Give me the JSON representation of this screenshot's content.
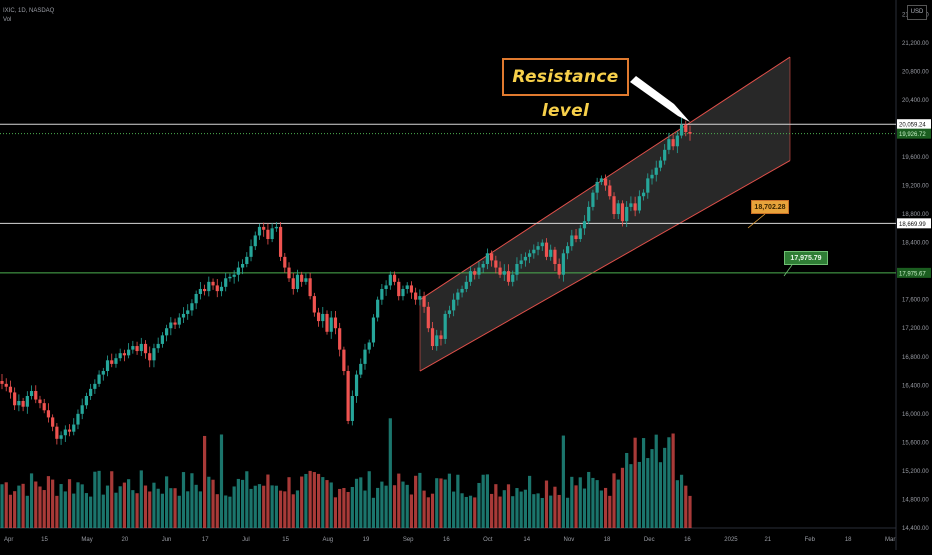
{
  "header": {
    "symbol_line": "IXIC, 1D, NASDAQ",
    "volume_label": "Vol",
    "currency": "USD"
  },
  "annotations": {
    "callout_text": "Resistance level",
    "tag_upper": "18,702.28",
    "tag_lower": "17,975.79"
  },
  "colors": {
    "background": "#000000",
    "up_candle": "#26a69a",
    "down_candle": "#ef5350",
    "channel_line": "#e0504a",
    "green_line": "#4caf50",
    "callout_border": "#e07a2f",
    "callout_text": "#f7d04a"
  },
  "chart_data": {
    "type": "candlestick",
    "y_axis": {
      "ticks": [
        "21,600.00",
        "21,200.00",
        "20,800.00",
        "20,400.00",
        "19,600.00",
        "19,200.00",
        "18,800.00",
        "18,400.00",
        "17,600.00",
        "17,200.00",
        "16,800.00",
        "16,400.00",
        "16,000.00",
        "15,600.00",
        "15,200.00",
        "14,800.00",
        "14,400.00"
      ],
      "range": [
        14400,
        21800
      ],
      "price_labels": [
        {
          "text": "20,059.24",
          "value": 20059.24,
          "style": "white"
        },
        {
          "text": "19,926.72",
          "value": 19926.72,
          "style": "green"
        },
        {
          "text": "18,669.99",
          "value": 18669.99,
          "style": "white"
        },
        {
          "text": "17,975.67",
          "value": 17975.67,
          "style": "green"
        }
      ]
    },
    "x_axis": {
      "ticks": [
        "Apr",
        "15",
        "May",
        "20",
        "Jun",
        "17",
        "Jul",
        "15",
        "Aug",
        "19",
        "Sep",
        "16",
        "Oct",
        "14",
        "Nov",
        "18",
        "Dec",
        "16",
        "2025",
        "21",
        "Feb",
        "18",
        "Mar"
      ]
    },
    "horizontal_levels": [
      {
        "value": 20059.24,
        "style": "white-solid"
      },
      {
        "value": 19926.72,
        "style": "green-dotted"
      },
      {
        "value": 18669.99,
        "style": "white-solid"
      },
      {
        "value": 17975.67,
        "style": "green-solid"
      }
    ],
    "series_closes": [
      16420,
      16380,
      16300,
      16120,
      16180,
      16100,
      16250,
      16320,
      16200,
      16150,
      16050,
      15950,
      15820,
      15650,
      15700,
      15780,
      15750,
      15850,
      16000,
      16120,
      16250,
      16350,
      16420,
      16550,
      16600,
      16750,
      16700,
      16780,
      16850,
      16820,
      16900,
      16950,
      16880,
      16980,
      16850,
      16750,
      16920,
      16980,
      17100,
      17200,
      17280,
      17250,
      17350,
      17400,
      17450,
      17550,
      17680,
      17750,
      17720,
      17850,
      17800,
      17720,
      17780,
      17900,
      17920,
      17950,
      18050,
      18100,
      18200,
      18350,
      18500,
      18620,
      18580,
      18450,
      18600,
      18620,
      18200,
      18050,
      17900,
      17750,
      17950,
      17850,
      17900,
      17650,
      17420,
      17300,
      17400,
      17150,
      17350,
      17200,
      16900,
      16600,
      15900,
      16250,
      16550,
      16700,
      16900,
      17000,
      17350,
      17600,
      17750,
      17800,
      17950,
      17850,
      17650,
      17750,
      17800,
      17700,
      17600,
      17650,
      17500,
      17200,
      16950,
      17100,
      17050,
      17400,
      17450,
      17600,
      17700,
      17750,
      17850,
      18000,
      17950,
      18050,
      18100,
      18250,
      18150,
      18050,
      17950,
      18000,
      17850,
      17950,
      18100,
      18150,
      18200,
      18250,
      18300,
      18350,
      18400,
      18200,
      18300,
      18100,
      17950,
      18250,
      18350,
      18500,
      18450,
      18600,
      18700,
      18900,
      19100,
      19250,
      19300,
      19200,
      19050,
      18800,
      18950,
      18700,
      18900,
      18950,
      18850,
      19050,
      19100,
      19300,
      19350,
      19450,
      19550,
      19700,
      19850,
      19750,
      19900,
      20050,
      19950,
      19926.72
    ],
    "channel": {
      "upper": [
        {
          "x_label": "Sep",
          "y": 17600
        },
        {
          "x_label": "Jan 21",
          "y": 21000
        }
      ],
      "lower": [
        {
          "x_label": "Sep",
          "y": 16600
        },
        {
          "x_label": "Jan 21",
          "y": 19550
        }
      ]
    }
  }
}
